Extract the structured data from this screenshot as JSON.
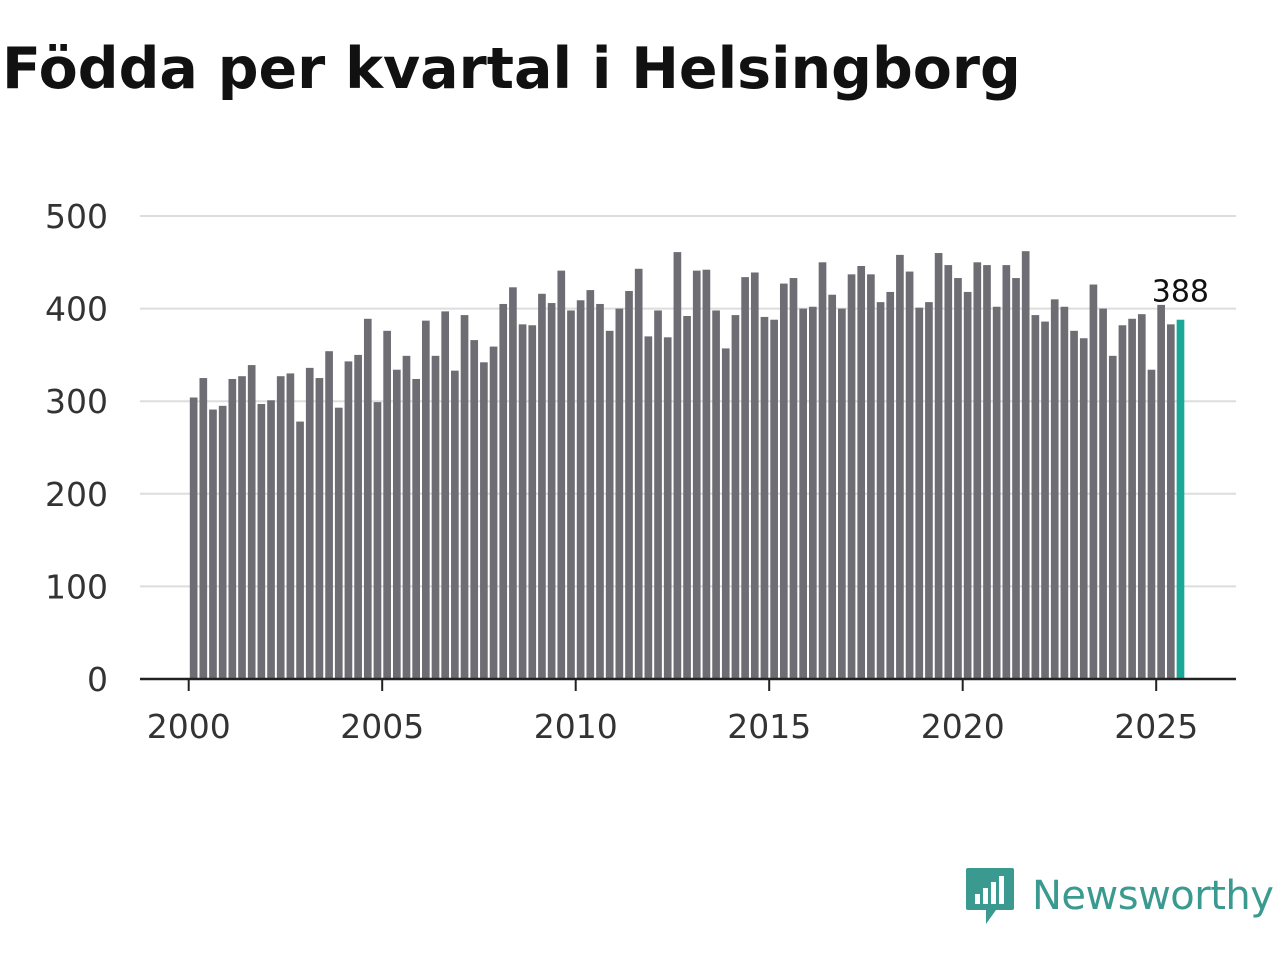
{
  "chart_data": {
    "type": "bar",
    "title": "Födda per kvartal i Helsingborg",
    "xlabel": "",
    "ylabel": "",
    "ylim": [
      0,
      500
    ],
    "yticks": [
      "0",
      "100",
      "200",
      "300",
      "400",
      "500"
    ],
    "xticks": [
      "2000",
      "2005",
      "2010",
      "2015",
      "2020",
      "2025"
    ],
    "start_year": 2000,
    "bar_color": "#6e6d74",
    "highlight_color": "#1aa898",
    "highlight_label": "388",
    "categories": [
      "2000Q1",
      "2000Q2",
      "2000Q3",
      "2000Q4",
      "2001Q1",
      "2001Q2",
      "2001Q3",
      "2001Q4",
      "2002Q1",
      "2002Q2",
      "2002Q3",
      "2002Q4",
      "2003Q1",
      "2003Q2",
      "2003Q3",
      "2003Q4",
      "2004Q1",
      "2004Q2",
      "2004Q3",
      "2004Q4",
      "2005Q1",
      "2005Q2",
      "2005Q3",
      "2005Q4",
      "2006Q1",
      "2006Q2",
      "2006Q3",
      "2006Q4",
      "2007Q1",
      "2007Q2",
      "2007Q3",
      "2007Q4",
      "2008Q1",
      "2008Q2",
      "2008Q3",
      "2008Q4",
      "2009Q1",
      "2009Q2",
      "2009Q3",
      "2009Q4",
      "2010Q1",
      "2010Q2",
      "2010Q3",
      "2010Q4",
      "2011Q1",
      "2011Q2",
      "2011Q3",
      "2011Q4",
      "2012Q1",
      "2012Q2",
      "2012Q3",
      "2012Q4",
      "2013Q1",
      "2013Q2",
      "2013Q3",
      "2013Q4",
      "2014Q1",
      "2014Q2",
      "2014Q3",
      "2014Q4",
      "2015Q1",
      "2015Q2",
      "2015Q3",
      "2015Q4",
      "2016Q1",
      "2016Q2",
      "2016Q3",
      "2016Q4",
      "2017Q1",
      "2017Q2",
      "2017Q3",
      "2017Q4",
      "2018Q1",
      "2018Q2",
      "2018Q3",
      "2018Q4",
      "2019Q1",
      "2019Q2",
      "2019Q3",
      "2019Q4",
      "2020Q1",
      "2020Q2",
      "2020Q3",
      "2020Q4",
      "2021Q1",
      "2021Q2",
      "2021Q3",
      "2021Q4",
      "2022Q1",
      "2022Q2",
      "2022Q3",
      "2022Q4",
      "2023Q1",
      "2023Q2",
      "2023Q3",
      "2023Q4",
      "2024Q1",
      "2024Q2",
      "2024Q3",
      "2024Q4",
      "2025Q1",
      "2025Q2",
      "2025Q3"
    ],
    "values": [
      304,
      325,
      291,
      295,
      324,
      327,
      339,
      297,
      301,
      327,
      330,
      278,
      336,
      325,
      354,
      293,
      343,
      350,
      389,
      299,
      376,
      334,
      349,
      324,
      387,
      349,
      397,
      333,
      393,
      366,
      342,
      359,
      405,
      423,
      383,
      382,
      416,
      406,
      441,
      398,
      409,
      420,
      405,
      376,
      400,
      419,
      443,
      370,
      398,
      369,
      461,
      392,
      441,
      442,
      398,
      357,
      393,
      434,
      439,
      391,
      388,
      427,
      433,
      400,
      402,
      450,
      415,
      400,
      437,
      446,
      437,
      407,
      418,
      458,
      440,
      401,
      407,
      460,
      447,
      433,
      418,
      450,
      447,
      402,
      447,
      433,
      462,
      393,
      386,
      410,
      402,
      376,
      368,
      426,
      400,
      349,
      382,
      389,
      394,
      334,
      404,
      383,
      388
    ]
  },
  "brand": {
    "name": "Newsworthy",
    "color": "#3a9a8f"
  }
}
